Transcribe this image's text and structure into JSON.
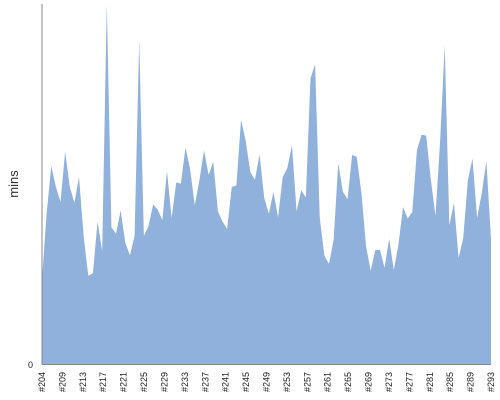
{
  "chart_data": {
    "type": "area",
    "ylabel": "mins",
    "ylim": [
      0,
      100
    ],
    "y_ticks": [
      "0"
    ],
    "x_tick_labels": [
      "#204",
      "#209",
      "#213",
      "#217",
      "#221",
      "#225",
      "#229",
      "#233",
      "#237",
      "#241",
      "#245",
      "#249",
      "#253",
      "#257",
      "#261",
      "#265",
      "#269",
      "#273",
      "#277",
      "#281",
      "#285",
      "#289",
      "#293"
    ],
    "series": [
      {
        "color": "#8fb1db",
        "values": [
          23.5,
          41.8,
          55,
          49.2,
          45,
          59,
          49.2,
          44.8,
          51.9,
          35.4,
          24.5,
          25.2,
          39.6,
          31.3,
          100,
          37.9,
          36.2,
          42.7,
          33.6,
          30.2,
          35.6,
          90,
          35.6,
          38.2,
          44.3,
          42.9,
          39.9,
          53.6,
          40.5,
          50.4,
          50.1,
          60.1,
          54.1,
          44.1,
          51,
          59.3,
          52.5,
          56.2,
          42.4,
          39.5,
          37.5,
          49.2,
          49.6,
          67.8,
          62,
          53.3,
          51.2,
          58.2,
          46.2,
          41.7,
          47.8,
          40.7,
          51.9,
          54.4,
          60.8,
          42.4,
          48.2,
          46.3,
          79.3,
          83.3,
          40.7,
          30.1,
          27.8,
          34.4,
          55.8,
          47.8,
          45.8,
          58.1,
          57.5,
          47.6,
          32.8,
          25.9,
          31.6,
          31.7,
          26.7,
          34.8,
          26.1,
          33.1,
          43.6,
          40.4,
          42.2,
          59.4,
          63.7,
          63.4,
          51.3,
          41.1,
          61.7,
          88.5,
          38.5,
          44.8,
          29.4,
          35,
          51,
          57.1,
          40.5,
          47.4,
          56.4,
          34.7
        ]
      }
    ]
  }
}
